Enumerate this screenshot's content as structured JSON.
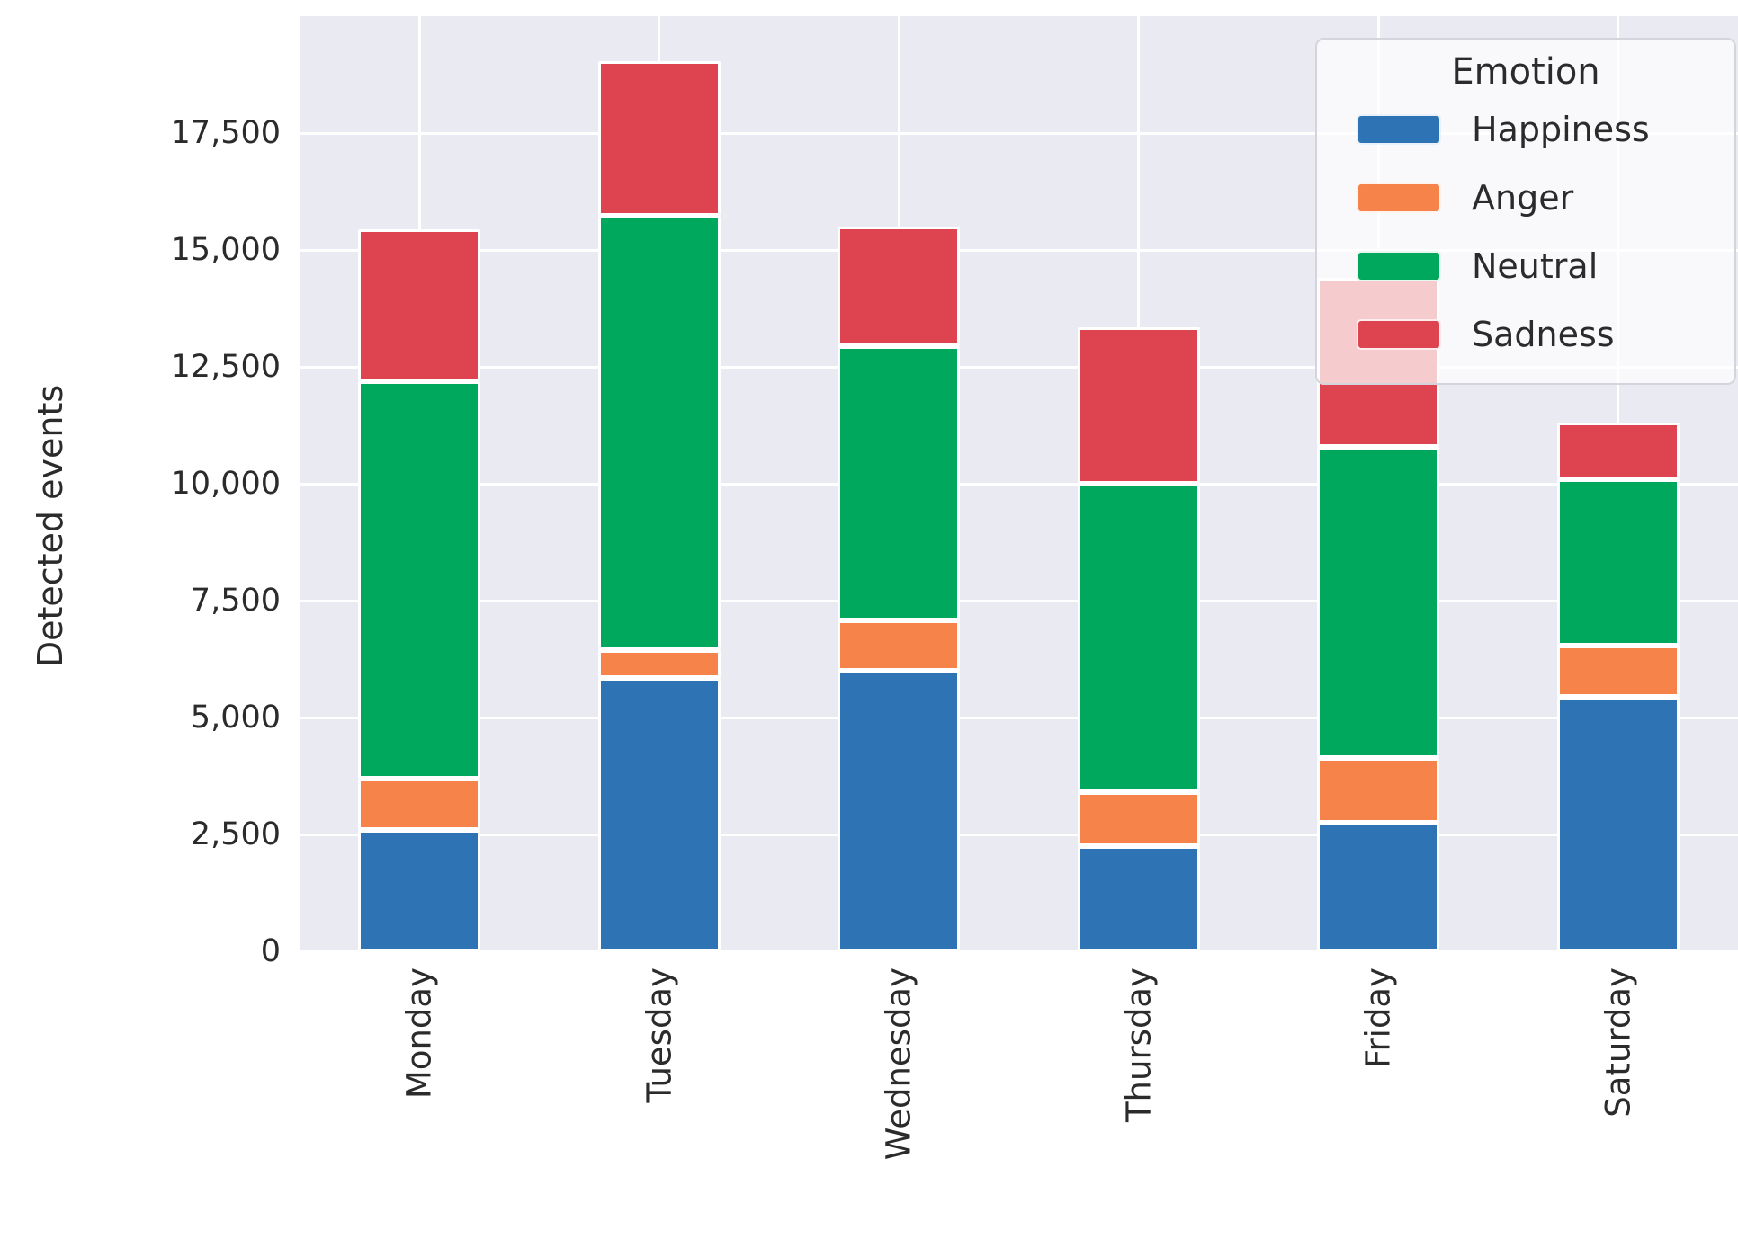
{
  "chart_data": {
    "type": "bar",
    "stacked": true,
    "title": "",
    "ylabel": "Detected events",
    "xlabel": "",
    "categories": [
      "Monday",
      "Tuesday",
      "Wednesday",
      "Thursday",
      "Friday",
      "Saturday"
    ],
    "series": [
      {
        "name": "Happiness",
        "color": "#2E73B4",
        "values": [
          2600,
          5850,
          6000,
          2250,
          2750,
          5450
        ]
      },
      {
        "name": "Anger",
        "color": "#F5834A",
        "values": [
          1100,
          600,
          1080,
          1150,
          1390,
          1080
        ]
      },
      {
        "name": "Neutral",
        "color": "#00A85E",
        "values": [
          8500,
          9280,
          5870,
          6600,
          6640,
          3570
        ]
      },
      {
        "name": "Sadness",
        "color": "#DE4450",
        "values": [
          3250,
          3300,
          2550,
          3350,
          3630,
          1210
        ]
      }
    ],
    "totals": [
      15450,
      19030,
      15500,
      13350,
      14410,
      11310
    ],
    "ylim": [
      0,
      20000
    ],
    "yticks": {
      "values": [
        0,
        2500,
        5000,
        7500,
        10000,
        12500,
        15000,
        17500
      ],
      "labels": [
        "0",
        "2,500",
        "5,000",
        "7,500",
        "10,000",
        "12,500",
        "15,000",
        "17,500"
      ]
    },
    "grid": "both",
    "grid_color": "#FFFFFF",
    "plot_background": "#E9EAF2",
    "text_color": "#262626",
    "legend": {
      "title": "Emotion",
      "position": "upper-right",
      "entries": [
        "Happiness",
        "Anger",
        "Neutral",
        "Sadness"
      ]
    }
  }
}
